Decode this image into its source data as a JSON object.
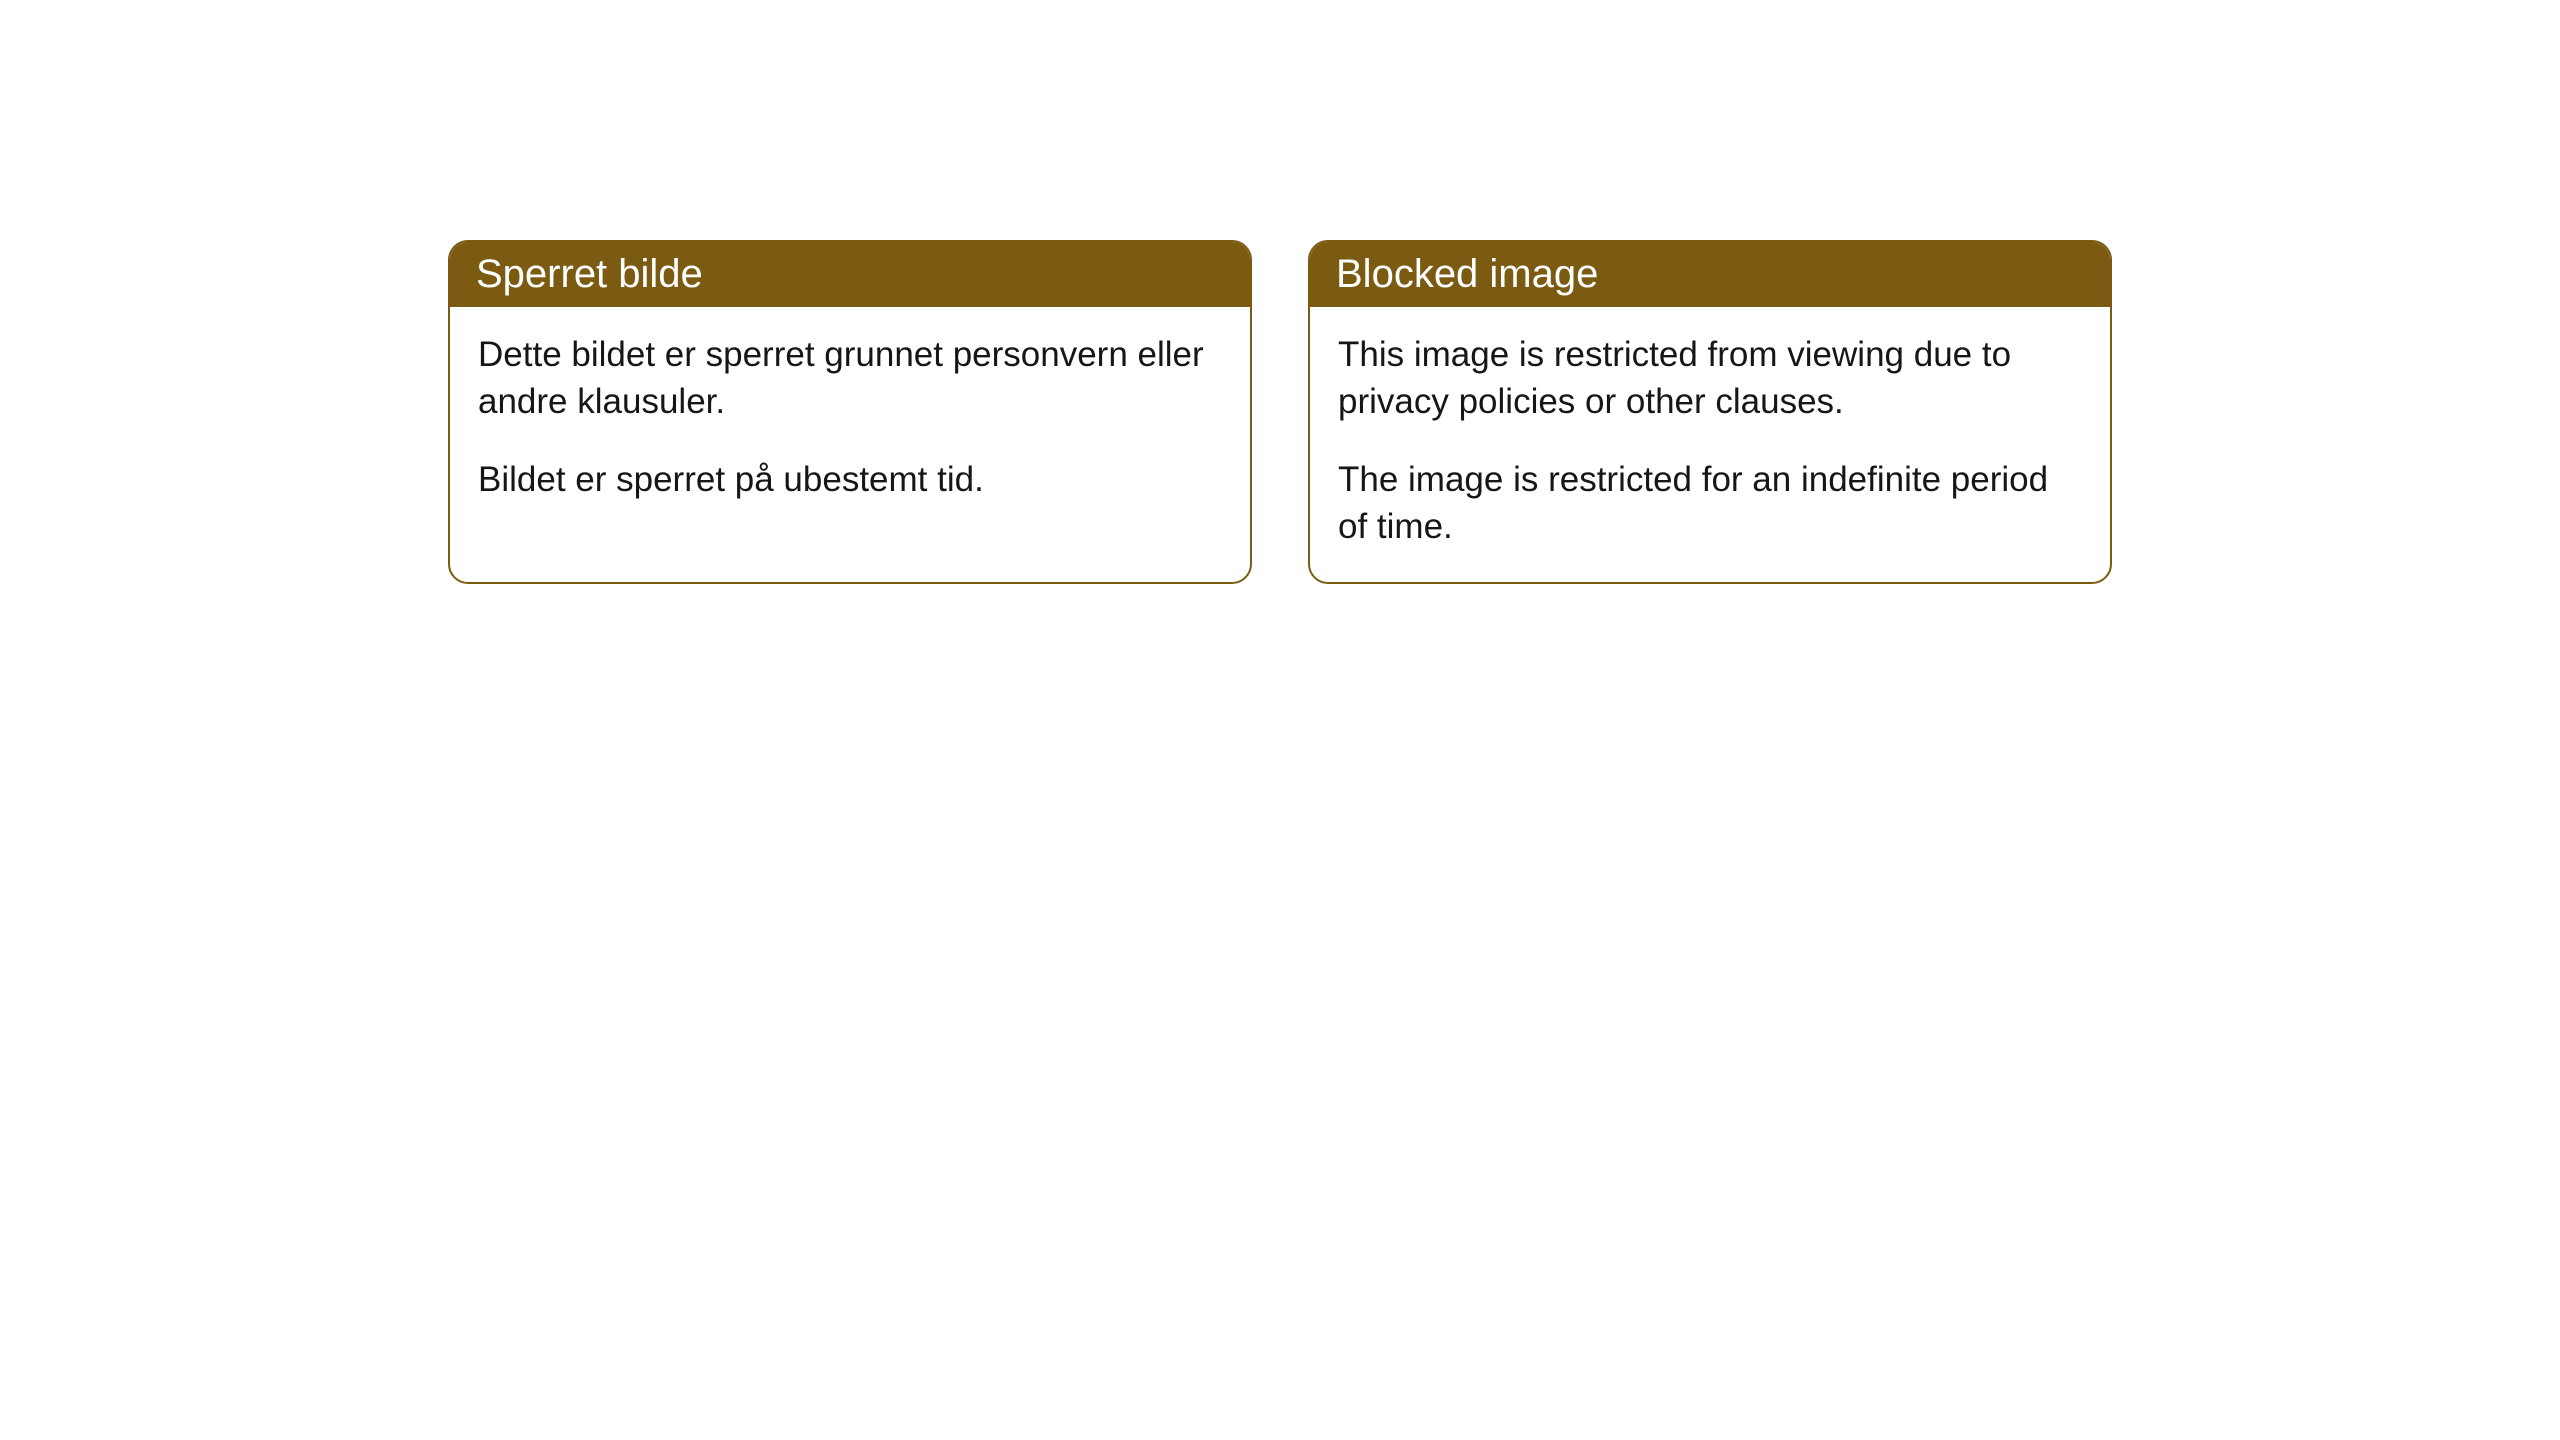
{
  "cards": [
    {
      "title": "Sperret bilde",
      "para1": "Dette bildet er sperret grunnet personvern eller andre klausuler.",
      "para2": "Bildet er sperret på ubestemt tid."
    },
    {
      "title": "Blocked image",
      "para1": "This image is restricted from viewing due to privacy policies or other clauses.",
      "para2": "The image is restricted for an indefinite period of time."
    }
  ],
  "style": {
    "header_bg": "#7a5b11",
    "header_text_color": "#ffffff",
    "border_color": "#7a5b11",
    "body_text_color": "#161616",
    "background_color": "#ffffff",
    "border_radius": 20,
    "title_fontsize": 40,
    "body_fontsize": 35
  }
}
